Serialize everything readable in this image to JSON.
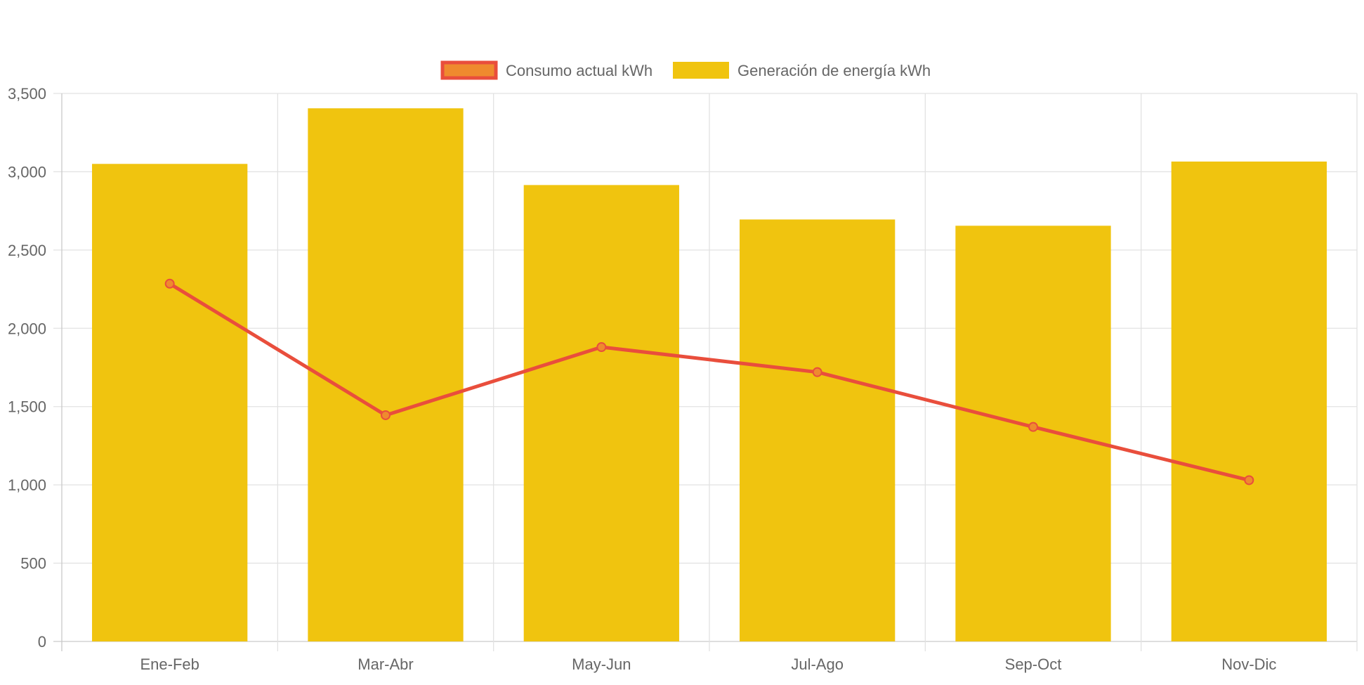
{
  "chart_data": {
    "type": "bar",
    "categories": [
      "Ene-Feb",
      "Mar-Abr",
      "May-Jun",
      "Jul-Ago",
      "Sep-Oct",
      "Nov-Dic"
    ],
    "series": [
      {
        "name": "Consumo actual kWh",
        "type": "line",
        "values": [
          2285,
          1445,
          1880,
          1720,
          1370,
          1030
        ],
        "color": "#e94e3c",
        "marker_fill": "#ef8a2e"
      },
      {
        "name": "Generación de energía kWh",
        "type": "bar",
        "values": [
          3050,
          3405,
          2915,
          2695,
          2655,
          3065
        ],
        "color": "#f0c40f"
      }
    ],
    "ylim": [
      0,
      3500
    ],
    "yticks": [
      "0",
      "500",
      "1,000",
      "1,500",
      "2,000",
      "2,500",
      "3,000",
      "3,500"
    ],
    "grid": true,
    "legend_position": "top-center"
  }
}
